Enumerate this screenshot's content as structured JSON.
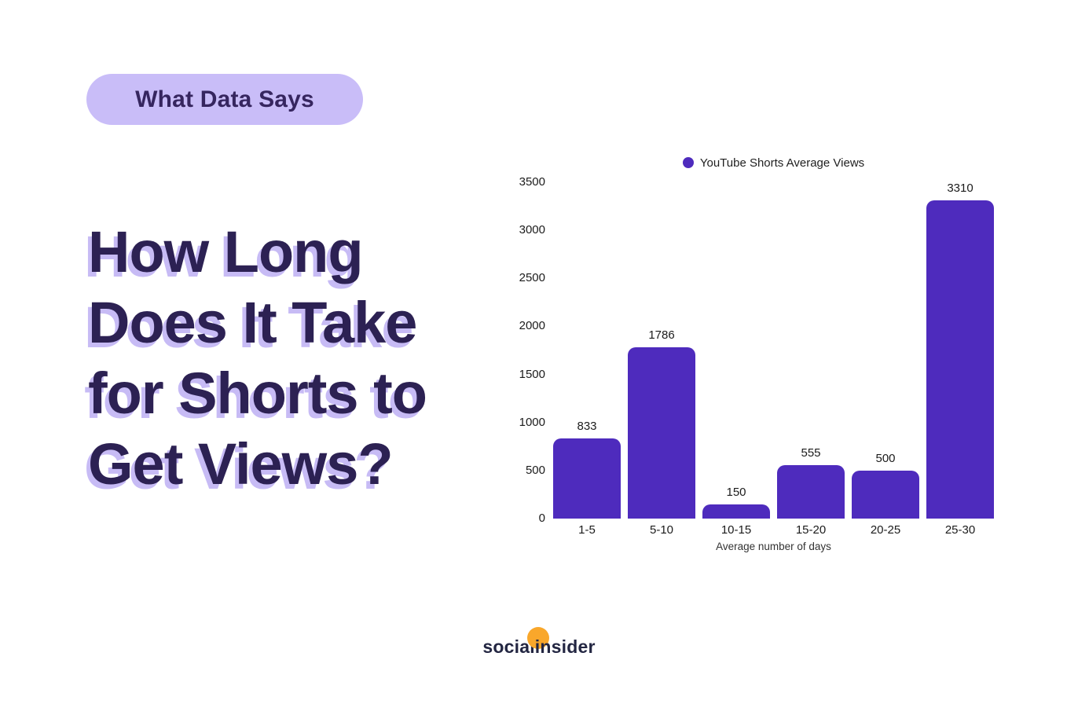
{
  "badge": {
    "label": "What Data Says"
  },
  "title": {
    "text": "How Long\nDoes It Take\nfor Shorts to\nGet Views?"
  },
  "chart_data": {
    "type": "bar",
    "legend": "YouTube Shorts Average Views",
    "categories": [
      "1-5",
      "5-10",
      "10-15",
      "15-20",
      "20-25",
      "25-30"
    ],
    "values": [
      833,
      1786,
      150,
      555,
      500,
      3310
    ],
    "xlabel": "Average number of days",
    "ylabel": "",
    "ylim": [
      0,
      3500
    ],
    "yticks": [
      0,
      500,
      1000,
      1500,
      2000,
      2500,
      3000,
      3500
    ],
    "grid": false,
    "legend_position": "top",
    "bar_color": "#4e2bbd"
  },
  "footer": {
    "logo_text_pre": "social",
    "logo_text_mid": "in",
    "logo_text_post": "sider"
  },
  "colors": {
    "accent_purple": "#4e2bbd",
    "lavender": "#c9bdf8",
    "heading_purple": "#2c2153",
    "shadow_lavender": "#c7bbf5",
    "logo_navy": "#232642",
    "logo_orange": "#f9a72b",
    "background": "#ffffff"
  }
}
